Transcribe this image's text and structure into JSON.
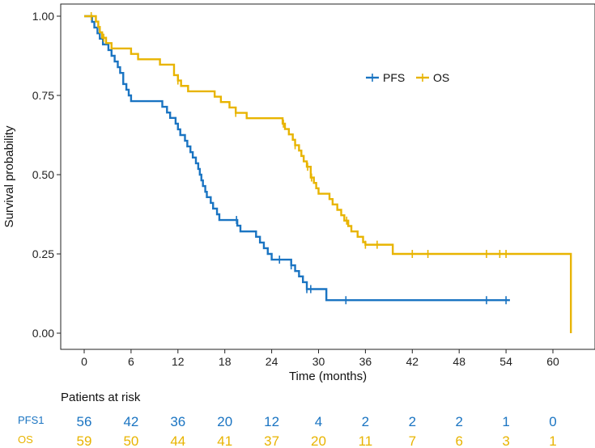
{
  "chart_data": {
    "type": "line",
    "subtype": "kaplan-meier",
    "xlabel": "Time (months)",
    "ylabel": "Survival probability",
    "xlim": [
      -3,
      64
    ],
    "ylim": [
      0,
      1
    ],
    "xticks": [
      0,
      6,
      12,
      18,
      24,
      30,
      36,
      42,
      48,
      54,
      60
    ],
    "yticks": [
      0.0,
      0.25,
      0.5,
      0.75,
      1.0
    ],
    "ytick_labels": [
      "0.00",
      "0.25",
      "0.50",
      "0.75",
      "1.00"
    ],
    "legend_position": "top-right",
    "series": [
      {
        "name": "PFS",
        "color": "#1a74c2",
        "steps": [
          [
            0,
            1.0
          ],
          [
            1.0,
            0.982
          ],
          [
            1.3,
            0.964
          ],
          [
            1.7,
            0.946
          ],
          [
            2.0,
            0.929
          ],
          [
            2.4,
            0.911
          ],
          [
            3.1,
            0.893
          ],
          [
            3.5,
            0.875
          ],
          [
            3.9,
            0.857
          ],
          [
            4.3,
            0.839
          ],
          [
            4.6,
            0.821
          ],
          [
            5.0,
            0.786
          ],
          [
            5.4,
            0.768
          ],
          [
            5.7,
            0.75
          ],
          [
            6.0,
            0.732
          ],
          [
            10.0,
            0.714
          ],
          [
            10.6,
            0.696
          ],
          [
            11.0,
            0.679
          ],
          [
            11.7,
            0.661
          ],
          [
            12.0,
            0.643
          ],
          [
            12.3,
            0.625
          ],
          [
            12.9,
            0.607
          ],
          [
            13.2,
            0.589
          ],
          [
            13.6,
            0.571
          ],
          [
            13.9,
            0.554
          ],
          [
            14.3,
            0.536
          ],
          [
            14.6,
            0.518
          ],
          [
            14.8,
            0.5
          ],
          [
            15.0,
            0.482
          ],
          [
            15.2,
            0.464
          ],
          [
            15.5,
            0.446
          ],
          [
            15.7,
            0.429
          ],
          [
            16.2,
            0.411
          ],
          [
            16.5,
            0.393
          ],
          [
            17.0,
            0.375
          ],
          [
            17.3,
            0.357
          ],
          [
            19.6,
            0.339
          ],
          [
            20.0,
            0.321
          ],
          [
            22.0,
            0.304
          ],
          [
            22.5,
            0.286
          ],
          [
            23.0,
            0.268
          ],
          [
            23.5,
            0.25
          ],
          [
            24.0,
            0.232
          ],
          [
            26.5,
            0.214
          ],
          [
            27.0,
            0.196
          ],
          [
            27.5,
            0.179
          ],
          [
            28.0,
            0.161
          ],
          [
            28.5,
            0.139
          ],
          [
            31.0,
            0.104
          ],
          [
            54.5,
            0.104
          ]
        ],
        "censor_times": [
          19.5,
          25.0,
          26.5,
          28.5,
          29.0,
          33.5,
          51.5,
          54.0
        ]
      },
      {
        "name": "OS",
        "color": "#e8b400",
        "steps": [
          [
            0,
            1.0
          ],
          [
            1.5,
            0.983
          ],
          [
            1.8,
            0.966
          ],
          [
            2.0,
            0.949
          ],
          [
            2.3,
            0.932
          ],
          [
            2.8,
            0.915
          ],
          [
            3.5,
            0.898
          ],
          [
            6.0,
            0.881
          ],
          [
            6.9,
            0.864
          ],
          [
            9.7,
            0.847
          ],
          [
            11.5,
            0.814
          ],
          [
            12.0,
            0.797
          ],
          [
            12.4,
            0.78
          ],
          [
            13.3,
            0.763
          ],
          [
            16.7,
            0.746
          ],
          [
            17.5,
            0.729
          ],
          [
            18.6,
            0.712
          ],
          [
            19.4,
            0.695
          ],
          [
            20.8,
            0.678
          ],
          [
            25.4,
            0.661
          ],
          [
            25.7,
            0.644
          ],
          [
            26.2,
            0.627
          ],
          [
            26.7,
            0.61
          ],
          [
            27.0,
            0.593
          ],
          [
            27.5,
            0.576
          ],
          [
            27.8,
            0.559
          ],
          [
            28.1,
            0.542
          ],
          [
            28.5,
            0.525
          ],
          [
            29.0,
            0.491
          ],
          [
            29.4,
            0.474
          ],
          [
            29.7,
            0.457
          ],
          [
            30.0,
            0.44
          ],
          [
            31.4,
            0.423
          ],
          [
            31.8,
            0.406
          ],
          [
            32.4,
            0.389
          ],
          [
            32.9,
            0.372
          ],
          [
            33.3,
            0.355
          ],
          [
            33.8,
            0.338
          ],
          [
            34.2,
            0.321
          ],
          [
            35.0,
            0.304
          ],
          [
            35.7,
            0.287
          ],
          [
            36.0,
            0.279
          ],
          [
            39.5,
            0.25
          ],
          [
            62.3,
            0.25
          ],
          [
            62.3,
            0.0
          ]
        ],
        "censor_times": [
          0.9,
          2.5,
          12.0,
          19.4,
          25.5,
          27.0,
          28.6,
          29.1,
          33.6,
          36.0,
          37.5,
          42.0,
          44.0,
          51.5,
          53.2,
          54.0
        ]
      }
    ],
    "risk_table": {
      "title": "Patients at risk",
      "times": [
        0,
        6,
        12,
        18,
        24,
        30,
        36,
        42,
        48,
        54,
        60
      ],
      "rows": [
        {
          "label": "PFS1",
          "color": "#1a74c2",
          "values": [
            "56",
            "42",
            "36",
            "20",
            "12",
            "4",
            "2",
            "2",
            "2",
            "1",
            "0"
          ]
        },
        {
          "label": "OS",
          "color": "#e8b400",
          "values": [
            "59",
            "50",
            "44",
            "41",
            "37",
            "20",
            "11",
            "7",
            "6",
            "3",
            "1"
          ]
        }
      ]
    }
  }
}
